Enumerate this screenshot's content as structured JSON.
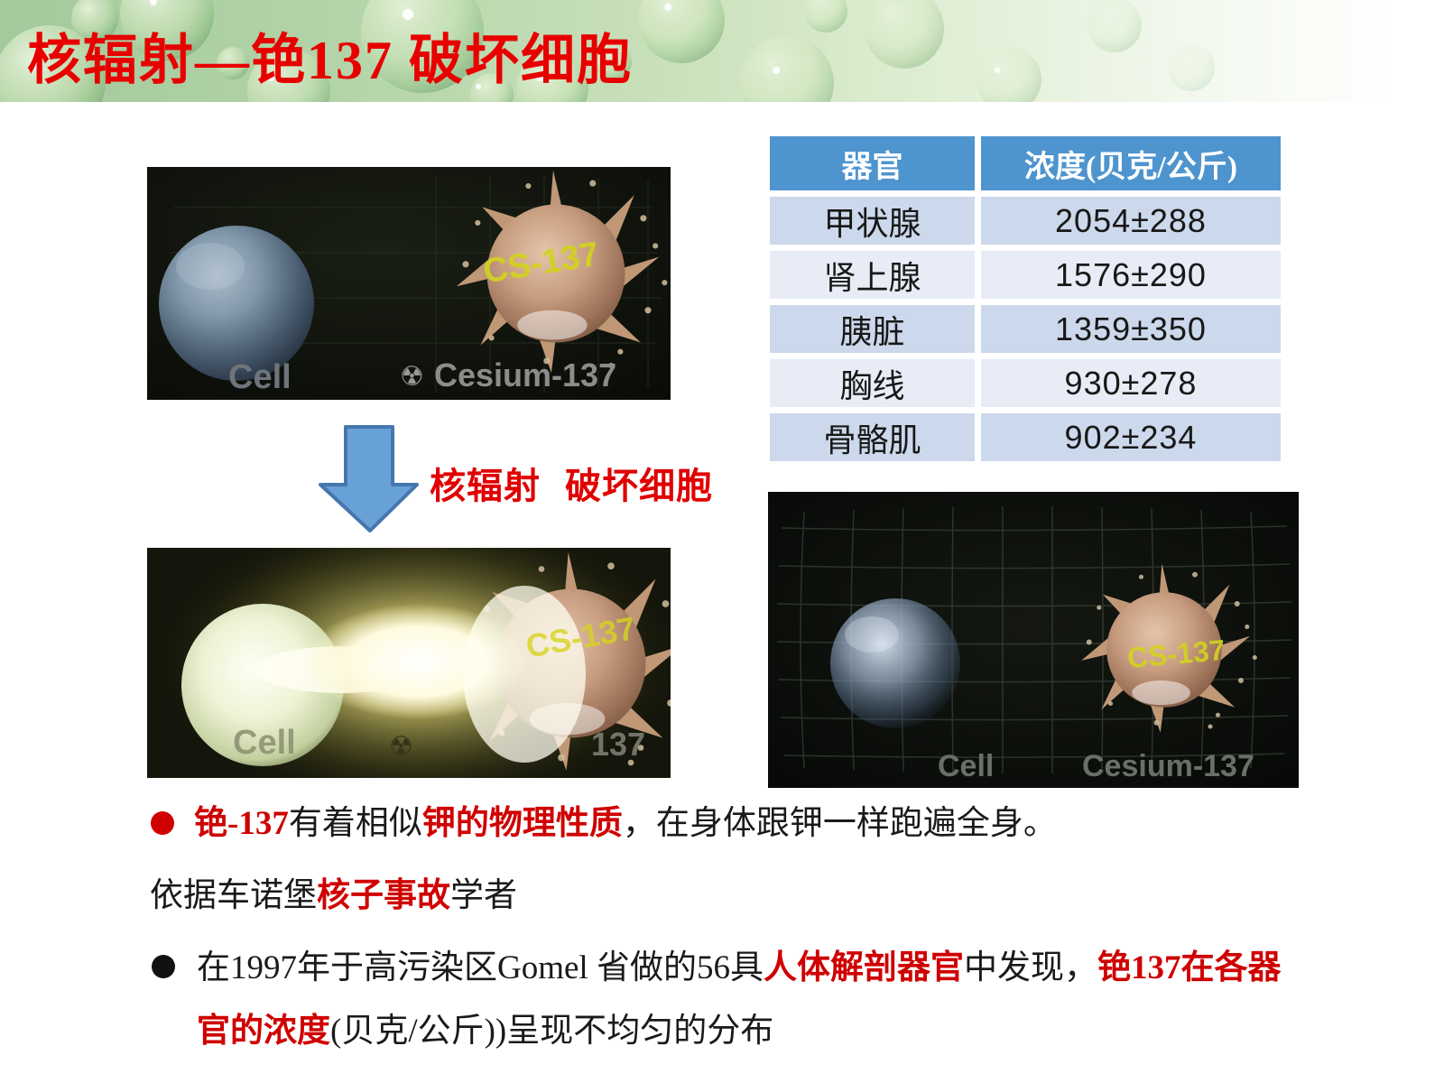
{
  "banner": {
    "title": "核辐射—铯137 破坏细胞"
  },
  "arrow_caption": "核辐射 破坏细胞",
  "table": {
    "col_headers": [
      "器官",
      "浓度(贝克/公斤)"
    ],
    "rows": [
      {
        "organ": "甲状腺",
        "concentration": "2054±288"
      },
      {
        "organ": "肾上腺",
        "concentration": "1576±290"
      },
      {
        "organ": "胰脏",
        "concentration": "1359±350"
      },
      {
        "organ": "胸线",
        "concentration": "930±278"
      },
      {
        "organ": "骨骼肌",
        "concentration": "902±234"
      }
    ]
  },
  "figures": {
    "top_left": {
      "cell_label": "Cell",
      "isotope_label": "Cesium-137",
      "particle_tag": "CS-137",
      "radiation_symbol": "☢"
    },
    "bottom_left": {
      "cell_label": "Cell",
      "isotope_fragment": "137",
      "particle_tag": "CS-137",
      "radiation_symbol": "☢"
    },
    "bottom_right": {
      "cell_label": "Cell",
      "isotope_label": "Cesium-137",
      "particle_tag": "CS-137"
    }
  },
  "bullets": {
    "line1": {
      "segments": [
        {
          "text": "铯-137",
          "red": true
        },
        {
          "text": "有着相似",
          "red": false
        },
        {
          "text": "钾的物理性质",
          "red": true
        },
        {
          "text": "，在身体跟钾一样跑遍全身。",
          "red": false
        }
      ]
    },
    "line2": {
      "segments": [
        {
          "text": "依据车诺堡",
          "red": false
        },
        {
          "text": "核子事故",
          "red": true
        },
        {
          "text": "学者",
          "red": false
        }
      ]
    },
    "line3": {
      "segments": [
        {
          "text": "在1997年于高污染区Gomel 省做的56具",
          "red": false
        },
        {
          "text": "人体解剖器官",
          "red": true
        },
        {
          "text": "中发现，",
          "red": false
        },
        {
          "text": "铯137在各器",
          "red": true
        }
      ]
    },
    "line4": {
      "segments": [
        {
          "text": "官的浓度",
          "red": true
        },
        {
          "text": "(贝克/公斤))呈现不均匀的分布",
          "red": false
        }
      ]
    }
  },
  "colors": {
    "title_red": "#e80000",
    "body_red": "#cf0000",
    "table_header_bg": "#4e94ce",
    "table_row_dark": "#ccd8eb",
    "table_row_light": "#e7ecf6",
    "arrow_fill": "#68a1d8",
    "arrow_border": "#4576ad",
    "cs_tag_yellow": "#d2d31e"
  }
}
